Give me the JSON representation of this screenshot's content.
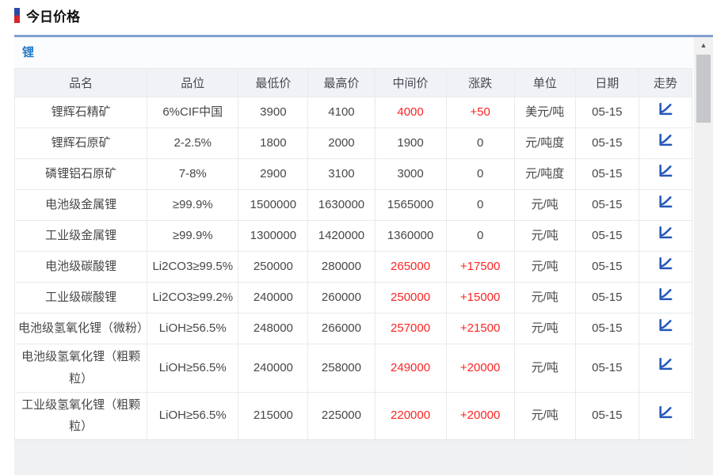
{
  "page": {
    "title": "今日价格"
  },
  "section": {
    "label": "锂"
  },
  "icons": {
    "trend": "line-chart-trend-icon",
    "scroll_up_arrow": "▲"
  },
  "colors": {
    "up_red": "#fb2424",
    "trend_icon_blue": "#2457b8",
    "section_label_blue": "#2278c8",
    "panel_top_border": "#82a0cd",
    "header_background": "#f1f2f5"
  },
  "table": {
    "columns": [
      {
        "key": "name",
        "label": "品名"
      },
      {
        "key": "grade",
        "label": "品位"
      },
      {
        "key": "low",
        "label": "最低价"
      },
      {
        "key": "high",
        "label": "最高价"
      },
      {
        "key": "mid",
        "label": "中间价"
      },
      {
        "key": "change",
        "label": "涨跌"
      },
      {
        "key": "unit",
        "label": "单位"
      },
      {
        "key": "date",
        "label": "日期"
      },
      {
        "key": "trend",
        "label": "走势"
      }
    ],
    "rows": [
      {
        "name": "锂辉石精矿",
        "grade": "6%CIF中国",
        "low": "3900",
        "high": "4100",
        "mid": "4000",
        "change": "+50",
        "unit": "美元/吨",
        "date": "05-15",
        "up": true
      },
      {
        "name": "锂辉石原矿",
        "grade": "2-2.5%",
        "low": "1800",
        "high": "2000",
        "mid": "1900",
        "change": "0",
        "unit": "元/吨度",
        "date": "05-15",
        "up": false
      },
      {
        "name": "磷锂铝石原矿",
        "grade": "7-8%",
        "low": "2900",
        "high": "3100",
        "mid": "3000",
        "change": "0",
        "unit": "元/吨度",
        "date": "05-15",
        "up": false
      },
      {
        "name": "电池级金属锂",
        "grade": "≥99.9%",
        "low": "1500000",
        "high": "1630000",
        "mid": "1565000",
        "change": "0",
        "unit": "元/吨",
        "date": "05-15",
        "up": false
      },
      {
        "name": "工业级金属锂",
        "grade": "≥99.9%",
        "low": "1300000",
        "high": "1420000",
        "mid": "1360000",
        "change": "0",
        "unit": "元/吨",
        "date": "05-15",
        "up": false
      },
      {
        "name": "电池级碳酸锂",
        "grade": "Li2CO3≥99.5%",
        "low": "250000",
        "high": "280000",
        "mid": "265000",
        "change": "+17500",
        "unit": "元/吨",
        "date": "05-15",
        "up": true
      },
      {
        "name": "工业级碳酸锂",
        "grade": "Li2CO3≥99.2%",
        "low": "240000",
        "high": "260000",
        "mid": "250000",
        "change": "+15000",
        "unit": "元/吨",
        "date": "05-15",
        "up": true
      },
      {
        "name": "电池级氢氧化锂（微粉）",
        "grade": "LiOH≥56.5%",
        "low": "248000",
        "high": "266000",
        "mid": "257000",
        "change": "+21500",
        "unit": "元/吨",
        "date": "05-15",
        "up": true
      },
      {
        "name": "电池级氢氧化锂（粗颗粒）",
        "grade": "LiOH≥56.5%",
        "low": "240000",
        "high": "258000",
        "mid": "249000",
        "change": "+20000",
        "unit": "元/吨",
        "date": "05-15",
        "up": true
      },
      {
        "name": "工业级氢氧化锂（粗颗粒）",
        "grade": "LiOH≥56.5%",
        "low": "215000",
        "high": "225000",
        "mid": "220000",
        "change": "+20000",
        "unit": "元/吨",
        "date": "05-15",
        "up": true
      }
    ]
  }
}
